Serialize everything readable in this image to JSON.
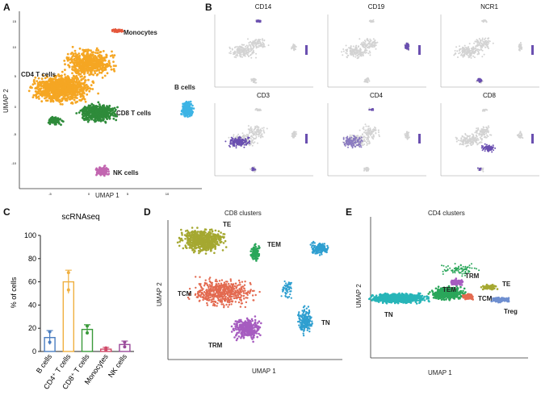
{
  "panels": {
    "A": {
      "letter": "A",
      "xlabel": "UMAP 1",
      "ylabel": "UMAP 2",
      "clusters": [
        "Monocytes",
        "CD4 T cells",
        "CD8 T cells",
        "B cells",
        "NK cells"
      ],
      "yticks": [
        "15",
        "10",
        "5",
        "0",
        "-5",
        "-10"
      ],
      "xticks": [
        "-5",
        "0",
        "5",
        "10"
      ]
    },
    "B": {
      "letter": "B",
      "markers": [
        "CD14",
        "CD19",
        "NCR1",
        "CD3",
        "CD4",
        "CD8"
      ]
    },
    "C": {
      "letter": "C"
    },
    "D": {
      "letter": "D",
      "title": "CD8 clusters",
      "xlabel": "UMAP 1",
      "ylabel": "UMAP 2",
      "clusters": [
        "TE",
        "TEM",
        "TCM",
        "TRM",
        "TN"
      ]
    },
    "E": {
      "letter": "E",
      "title": "CD4 clusters",
      "xlabel": "UMAP 1",
      "ylabel": "UMAP 2",
      "clusters": [
        "TRM",
        "TEM",
        "TE",
        "TCM",
        "Treg",
        "TN"
      ]
    }
  },
  "colors": {
    "monocytes": "#e5573b",
    "cd4": "#f5a623",
    "cd8": "#2e8b3a",
    "bcells": "#3db4e5",
    "nk": "#c266b0",
    "purple": "#6a4fb0",
    "grey": "#d3d3d3",
    "te": "#a5a831",
    "tem": "#2aa65a",
    "tcm": "#e36a50",
    "trm": "#a65cc0",
    "tn": "#2f9fd0",
    "treg": "#6f8fd0",
    "tn_cd4": "#27b5b8"
  },
  "chart_data": {
    "type": "bar",
    "title": "scRNAseq",
    "ylabel": "% of cells",
    "xlabel": "",
    "ylim": [
      0,
      100
    ],
    "yticks": [
      0,
      20,
      40,
      60,
      80,
      100
    ],
    "categories": [
      "B cells",
      "CD4⁺ T cells",
      "CD8⁺ T cells",
      "Monocytes",
      "NK cells"
    ],
    "values": [
      12,
      60,
      19,
      2,
      6
    ],
    "errors": [
      6,
      10,
      4,
      1.5,
      3
    ],
    "points": [
      [
        8,
        17
      ],
      [
        53,
        68
      ],
      [
        16,
        22
      ],
      [
        1,
        3
      ],
      [
        4,
        8
      ]
    ],
    "bar_colors": [
      "#4a7dc0",
      "#f0b040",
      "#3a9a3a",
      "#d04a6a",
      "#9a4a9a"
    ]
  }
}
